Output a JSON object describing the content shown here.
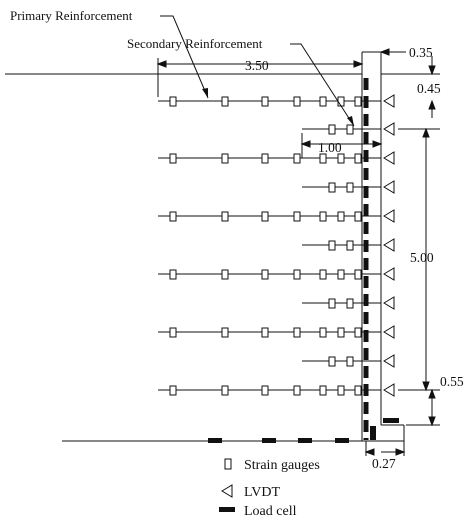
{
  "labels": {
    "primary": "Primary Reinforcement",
    "secondary": "Secondary Reinforcement"
  },
  "dimensions": {
    "d_0_35": "0.35",
    "d_3_50": "3.50",
    "d_0_45": "0.45",
    "d_1_00": "1.00",
    "d_5_00": "5.00",
    "d_0_55": "0.55",
    "d_0_27": "0.27"
  },
  "legend": {
    "strain": "Strain gauges",
    "lvdt": "LVDT",
    "load": "Load cell"
  },
  "colors": {
    "line": "#111111",
    "background": "#ffffff"
  }
}
